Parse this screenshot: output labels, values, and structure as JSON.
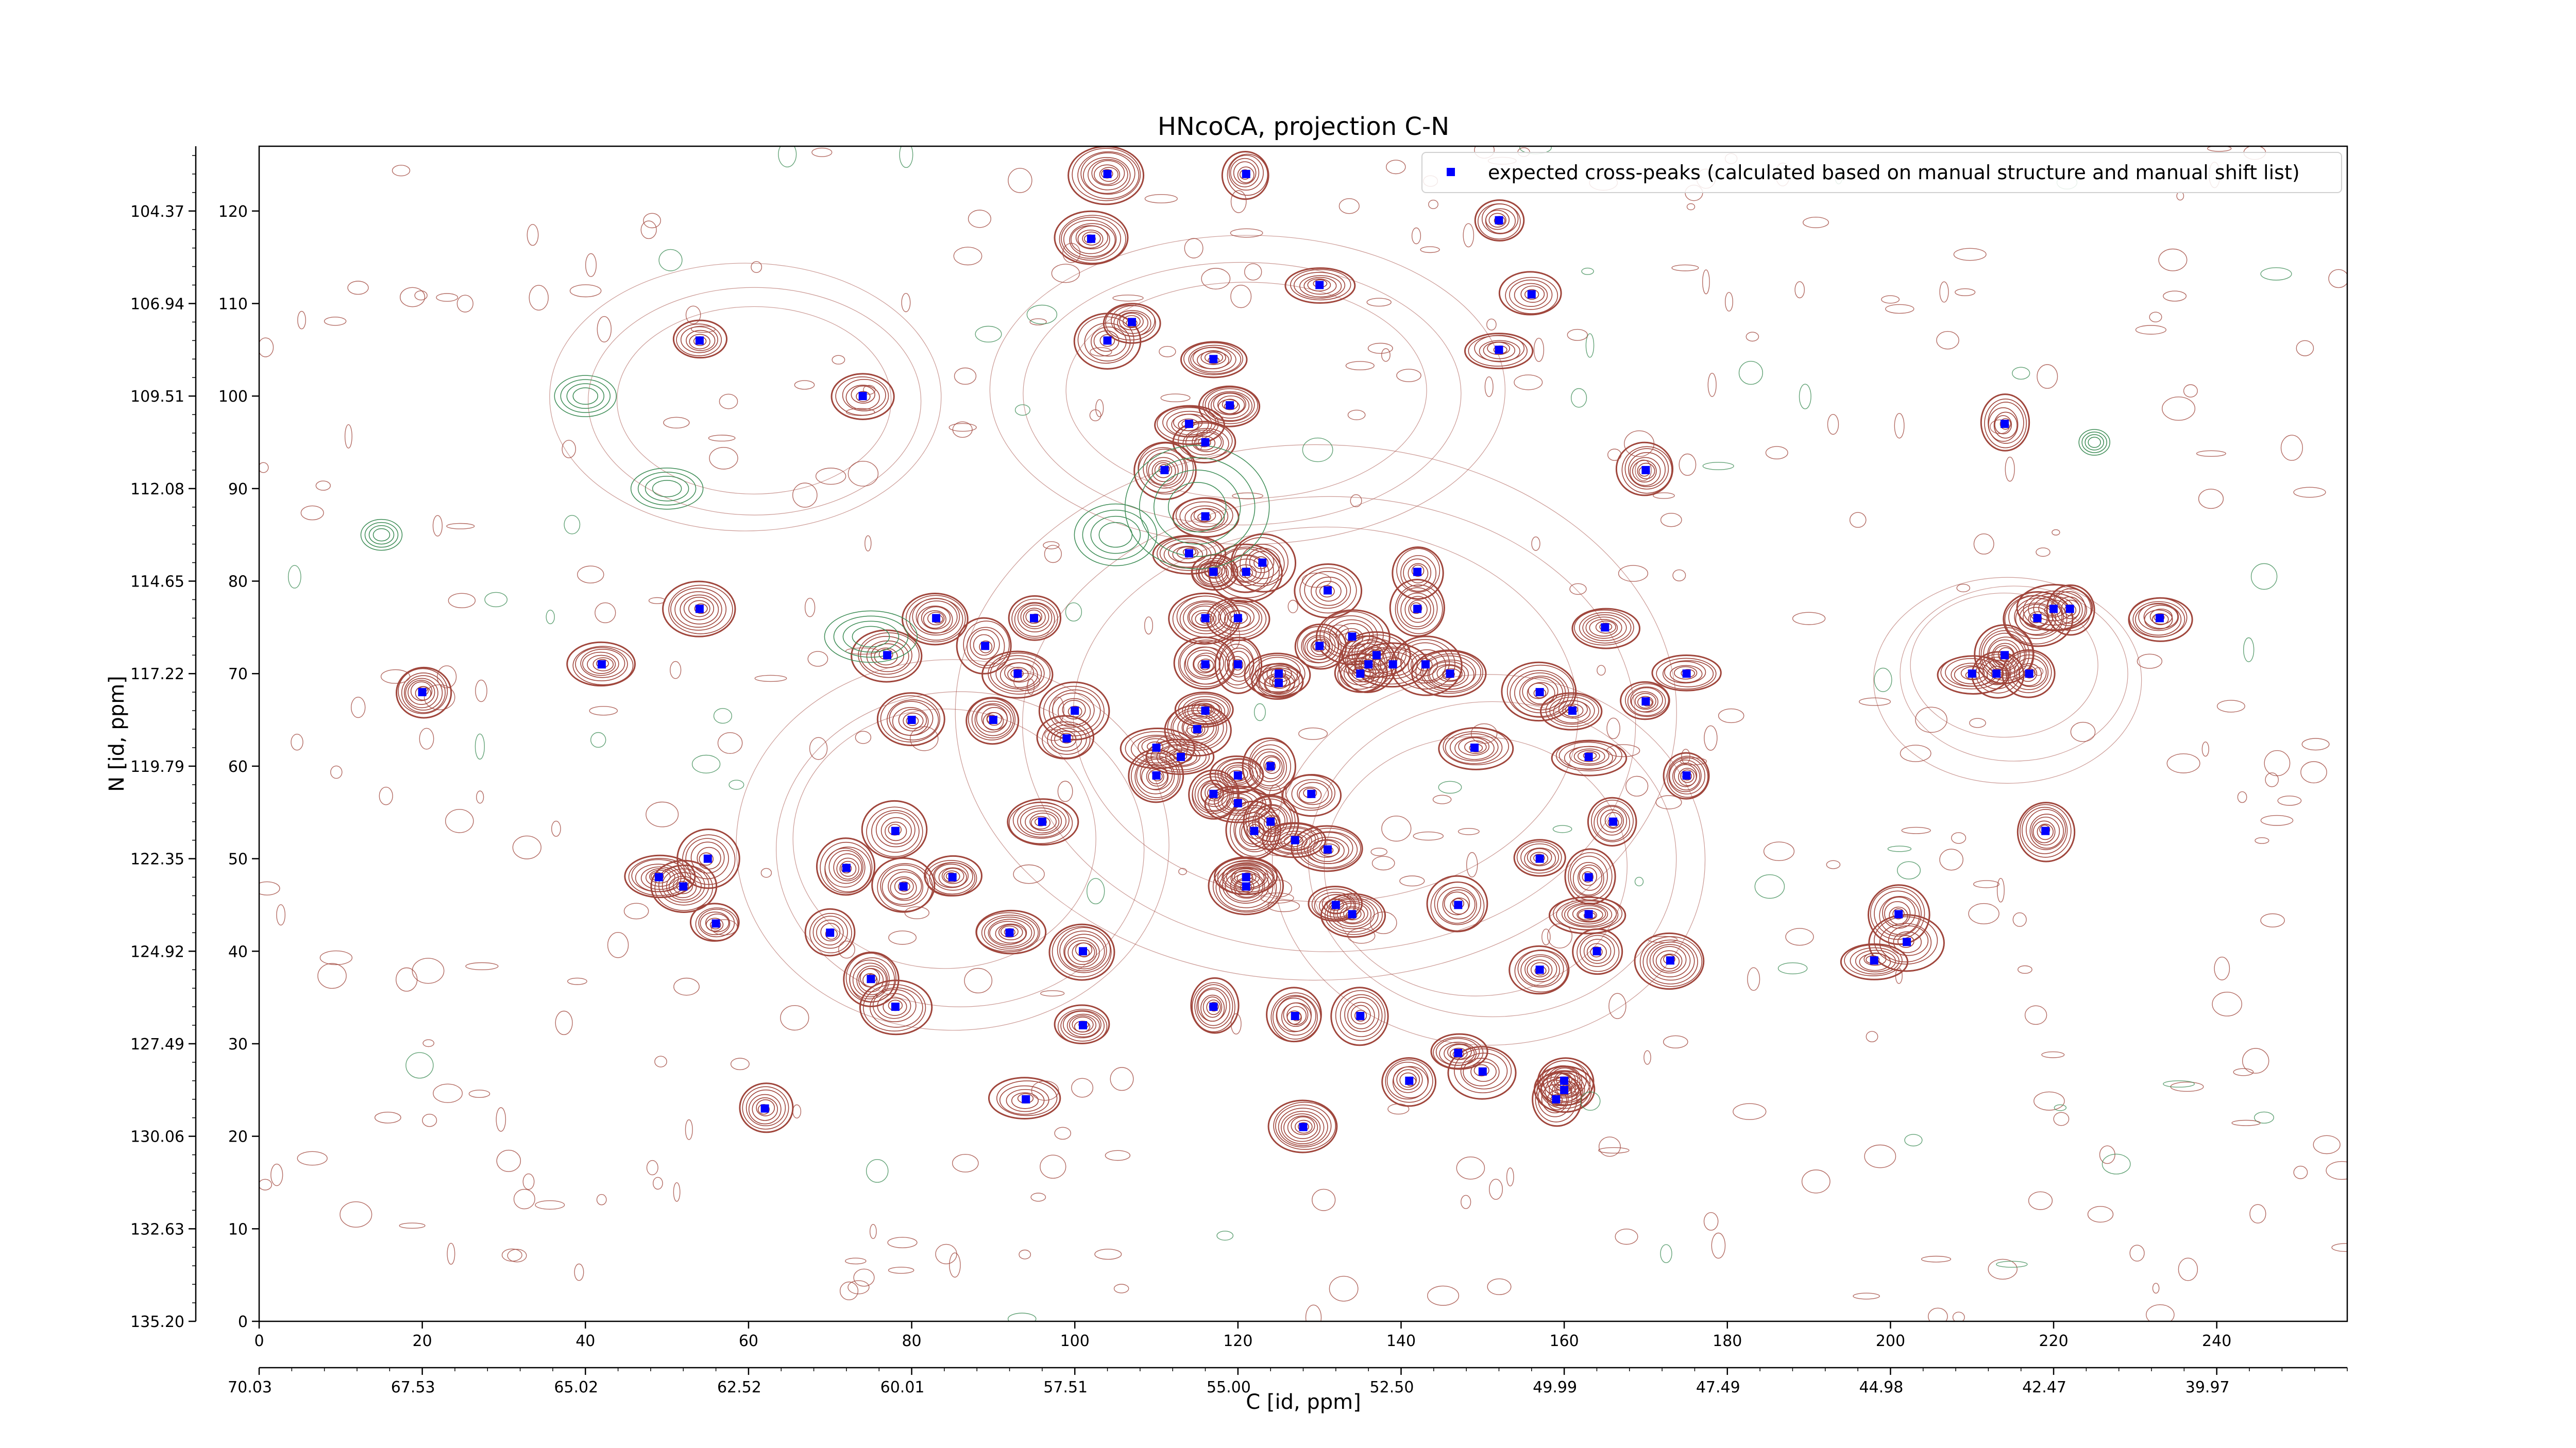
{
  "chart_data": {
    "type": "scatter",
    "title": "HNcoCA, projection C-N",
    "xlabel": "C [id, ppm]",
    "ylabel": "N [id, ppm]",
    "xlim": [
      0,
      256
    ],
    "ylim": [
      0,
      127
    ],
    "x_ticks": [
      0,
      20,
      40,
      60,
      80,
      100,
      120,
      140,
      160,
      180,
      200,
      220,
      240
    ],
    "y_ticks": [
      0,
      10,
      20,
      30,
      40,
      50,
      60,
      70,
      80,
      90,
      100,
      110,
      120
    ],
    "ppm_x_ticks": [
      "70.03",
      "67.53",
      "65.02",
      "62.52",
      "60.01",
      "57.51",
      "55.00",
      "52.50",
      "49.99",
      "47.49",
      "44.98",
      "42.47",
      "39.97"
    ],
    "ppm_y_ticks": [
      "135.20",
      "132.63",
      "130.06",
      "127.49",
      "124.92",
      "122.35",
      "119.79",
      "117.22",
      "114.65",
      "112.08",
      "109.51",
      "106.94",
      "104.37"
    ],
    "legend": {
      "label": "expected cross-peaks (calculated based on manual structure and manual shift list)",
      "position": "top-right"
    },
    "colors": {
      "marker": "#0000ff",
      "contour_positive": "#a0463c",
      "contour_negative": "#3c8c55",
      "frame": "#000000"
    },
    "series": [
      {
        "name": "expected cross-peaks (calculated based on manual structure and manual shift list)",
        "points": [
          [
            20,
            68
          ],
          [
            42,
            71
          ],
          [
            54,
            77
          ],
          [
            54,
            106
          ],
          [
            74,
            100
          ],
          [
            77,
            72
          ],
          [
            49,
            48
          ],
          [
            52,
            47
          ],
          [
            55,
            50
          ],
          [
            56,
            43
          ],
          [
            62,
            23
          ],
          [
            70,
            42
          ],
          [
            72,
            49
          ],
          [
            75,
            37
          ],
          [
            78,
            34
          ],
          [
            78,
            53
          ],
          [
            79,
            47
          ],
          [
            80,
            65
          ],
          [
            83,
            76
          ],
          [
            85,
            48
          ],
          [
            89,
            73
          ],
          [
            90,
            65
          ],
          [
            92,
            42
          ],
          [
            93,
            70
          ],
          [
            94,
            24
          ],
          [
            95,
            76
          ],
          [
            96,
            54
          ],
          [
            99,
            63
          ],
          [
            100,
            66
          ],
          [
            101,
            40
          ],
          [
            101,
            32
          ],
          [
            104,
            106
          ],
          [
            104,
            124
          ],
          [
            102,
            117
          ],
          [
            107,
            108
          ],
          [
            110,
            62
          ],
          [
            110,
            59
          ],
          [
            111,
            92
          ],
          [
            113,
            61
          ],
          [
            114,
            83
          ],
          [
            114,
            97
          ],
          [
            115,
            64
          ],
          [
            116,
            71
          ],
          [
            116,
            95
          ],
          [
            116,
            87
          ],
          [
            116,
            76
          ],
          [
            116,
            66
          ],
          [
            117,
            81
          ],
          [
            117,
            57
          ],
          [
            117,
            34
          ],
          [
            117,
            104
          ],
          [
            119,
            99
          ],
          [
            120,
            76
          ],
          [
            120,
            71
          ],
          [
            120,
            59
          ],
          [
            120,
            56
          ],
          [
            121,
            47
          ],
          [
            121,
            48
          ],
          [
            121,
            81
          ],
          [
            121,
            124
          ],
          [
            123,
            82
          ],
          [
            122,
            53
          ],
          [
            124,
            60
          ],
          [
            124,
            54
          ],
          [
            125,
            69
          ],
          [
            125,
            70
          ],
          [
            127,
            52
          ],
          [
            127,
            33
          ],
          [
            128,
            21
          ],
          [
            129,
            57
          ],
          [
            130,
            73
          ],
          [
            130,
            112
          ],
          [
            131,
            79
          ],
          [
            131,
            51
          ],
          [
            132,
            45
          ],
          [
            134,
            44
          ],
          [
            134,
            74
          ],
          [
            135,
            33
          ],
          [
            135,
            70
          ],
          [
            136,
            71
          ],
          [
            137,
            72
          ],
          [
            139,
            71
          ],
          [
            141,
            26
          ],
          [
            142,
            81
          ],
          [
            142,
            77
          ],
          [
            143,
            71
          ],
          [
            146,
            70
          ],
          [
            147,
            45
          ],
          [
            147,
            29
          ],
          [
            149,
            62
          ],
          [
            150,
            27
          ],
          [
            152,
            105
          ],
          [
            152,
            119
          ],
          [
            156,
            111
          ],
          [
            157,
            50
          ],
          [
            157,
            68
          ],
          [
            157,
            38
          ],
          [
            159,
            24
          ],
          [
            160,
            25
          ],
          [
            160,
            26
          ],
          [
            161,
            66
          ],
          [
            163,
            48
          ],
          [
            163,
            61
          ],
          [
            163,
            44
          ],
          [
            164,
            40
          ],
          [
            165,
            75
          ],
          [
            166,
            54
          ],
          [
            170,
            67
          ],
          [
            170,
            92
          ],
          [
            173,
            39
          ],
          [
            175,
            70
          ],
          [
            175,
            59
          ],
          [
            198,
            39
          ],
          [
            201,
            44
          ],
          [
            202,
            41
          ],
          [
            210,
            70
          ],
          [
            213,
            70
          ],
          [
            214,
            97
          ],
          [
            214,
            72
          ],
          [
            217,
            70
          ],
          [
            218,
            76
          ],
          [
            220,
            77
          ],
          [
            222,
            77
          ],
          [
            219,
            53
          ],
          [
            233,
            76
          ]
        ]
      }
    ]
  }
}
